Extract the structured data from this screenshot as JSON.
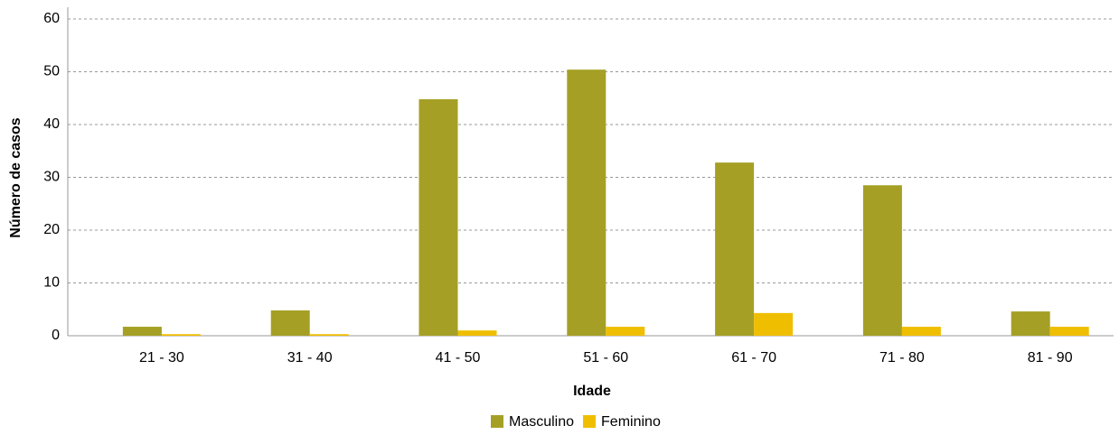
{
  "chart_data": {
    "type": "bar",
    "categories": [
      "21 - 30",
      "31 - 40",
      "41 - 50",
      "51 - 60",
      "61 - 70",
      "71 - 80",
      "81 - 90"
    ],
    "series": [
      {
        "name": "Masculino",
        "color": "#a5a025",
        "values": [
          1.7,
          4.8,
          44.8,
          50.4,
          32.8,
          28.5,
          4.6
        ]
      },
      {
        "name": "Feminino",
        "color": "#f0be00",
        "values": [
          0.3,
          0.3,
          1.0,
          1.7,
          4.3,
          1.7,
          1.7
        ]
      }
    ],
    "xlabel": "Idade",
    "ylabel": "Número de casos",
    "ylim": [
      0,
      60
    ],
    "yticks": [
      0,
      10,
      20,
      30,
      40,
      50,
      60
    ],
    "grid": true,
    "legend": "bottom"
  }
}
